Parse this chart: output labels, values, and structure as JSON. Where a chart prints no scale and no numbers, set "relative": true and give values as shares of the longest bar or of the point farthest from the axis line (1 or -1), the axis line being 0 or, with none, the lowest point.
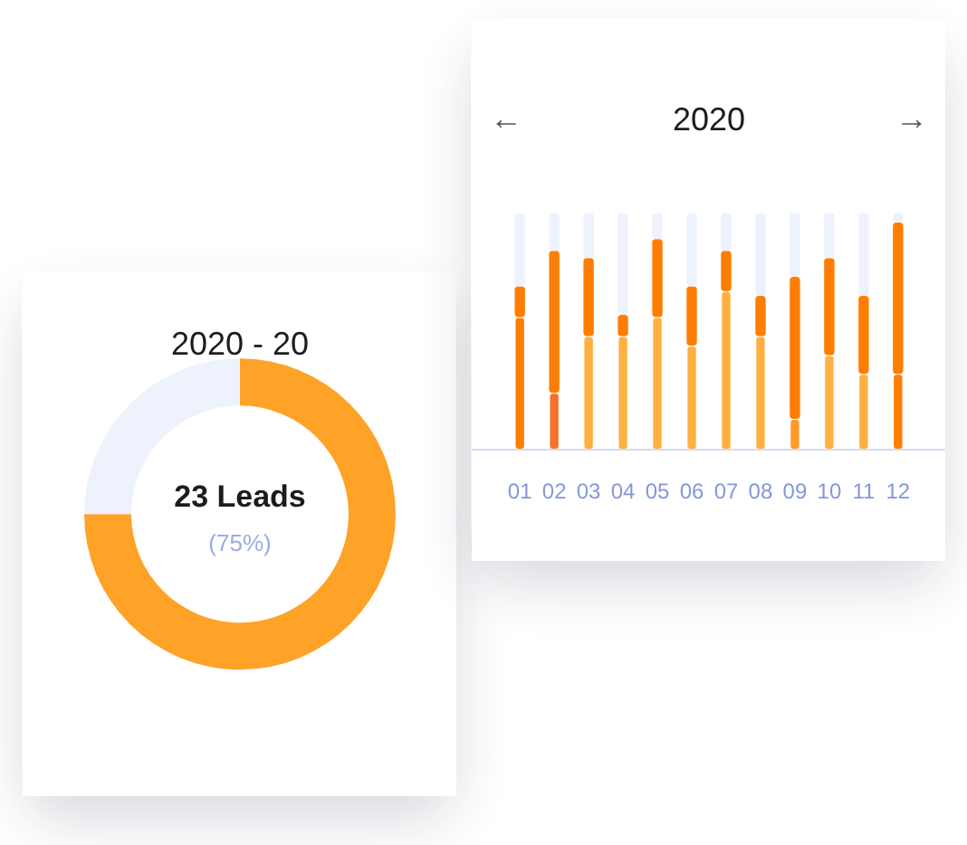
{
  "chart_data": [
    {
      "type": "donut",
      "title": "2020 - 20",
      "categories": [
        null,
        null
      ],
      "values": [
        75,
        25
      ],
      "colors": [
        "#ffa228",
        "#eef2fc"
      ],
      "annotations": [
        "23 Leads",
        "(75%)"
      ]
    },
    {
      "type": "bar",
      "title": "2020",
      "annotations": [
        "←",
        "→"
      ],
      "categories": [
        "01",
        "02",
        "03",
        "04",
        "05",
        "06",
        "07",
        "08",
        "09",
        "10",
        "11",
        "12"
      ],
      "stacked": true,
      "relative": true,
      "series": [
        {
          "colors": [
            "#ff7d00",
            "#f4722a",
            "#ffb040",
            "#ffb040",
            "#ffb040",
            "#ffb040",
            "#ffb040",
            "#ffb040",
            "#ff9a2a",
            "#ffb040",
            "#ffb040",
            "#ff7d00"
          ],
          "values": [
            0.56,
            0.24,
            0.48,
            0.48,
            0.56,
            0.44,
            0.67,
            0.48,
            0.13,
            0.4,
            0.32,
            0.32
          ]
        },
        {
          "color": "#ff7d00",
          "values": [
            0.13,
            0.6,
            0.33,
            0.09,
            0.33,
            0.25,
            0.17,
            0.17,
            0.6,
            0.41,
            0.33,
            0.64
          ]
        },
        {
          "color": "#eef2fc",
          "values": [
            0.31,
            0.16,
            0.19,
            0.43,
            0.11,
            0.31,
            0.16,
            0.35,
            0.27,
            0.19,
            0.35,
            0.04
          ]
        }
      ]
    }
  ]
}
